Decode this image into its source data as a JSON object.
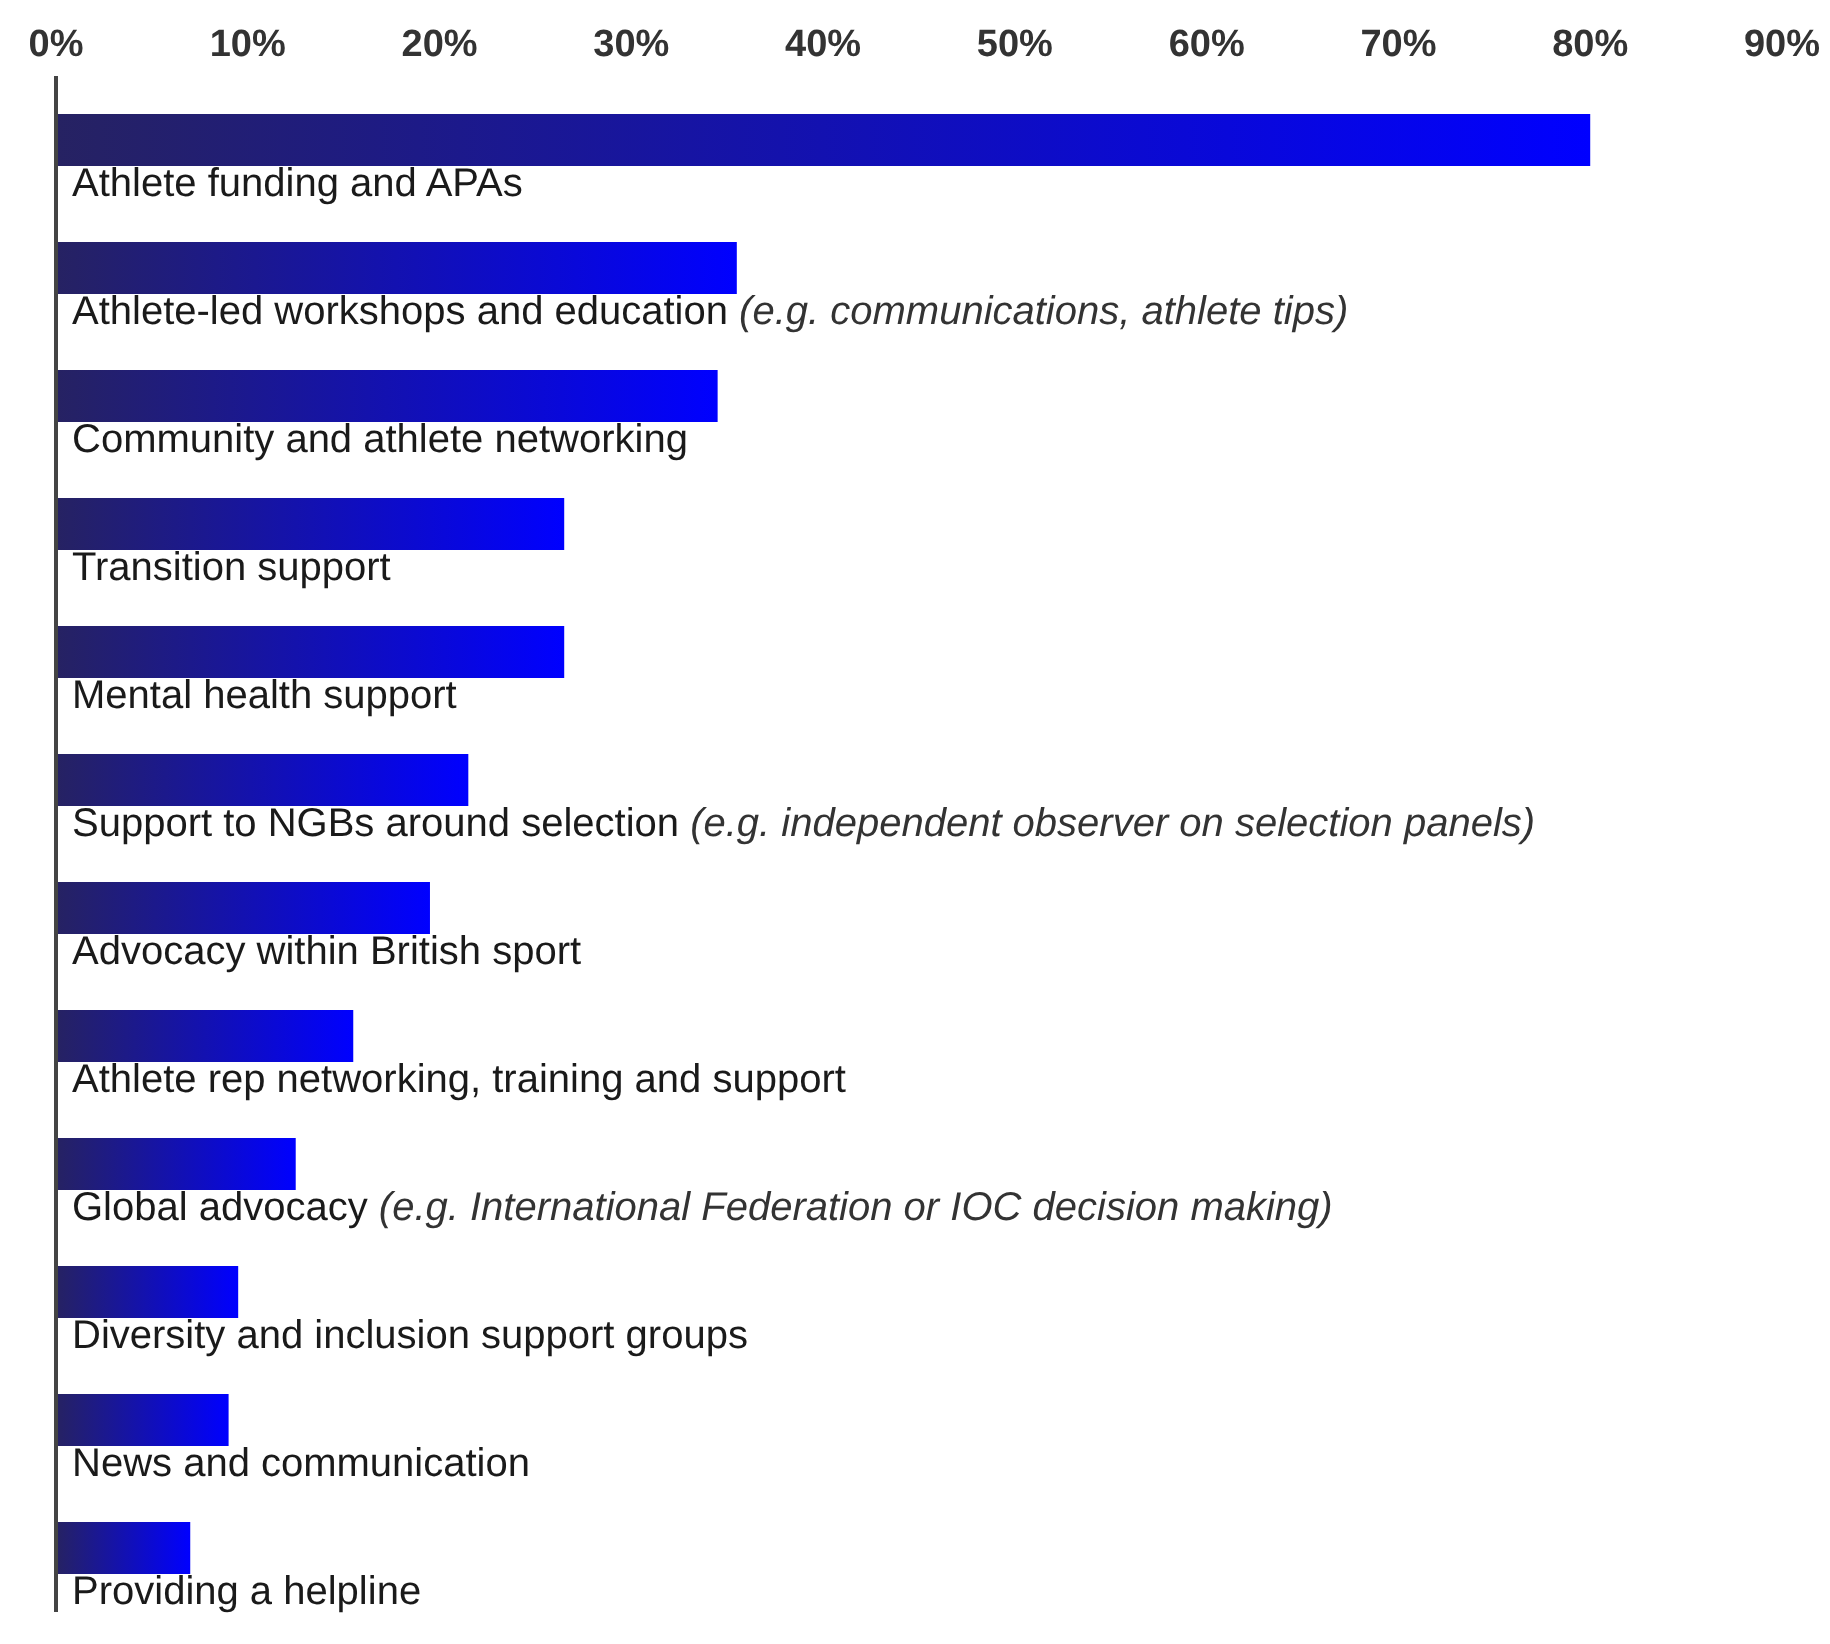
{
  "chart_data": {
    "type": "bar",
    "orientation": "horizontal",
    "categories": [
      "Athlete funding and APAs",
      "Athlete-led workshops and education (e.g. communications, athlete tips)",
      "Community and athlete networking",
      "Transition support",
      "Mental health support",
      "Support to NGBs around selection (e.g. independent observer on selection panels)",
      "Advocacy within British sport",
      "Athlete rep networking, training and support",
      "Global advocacy (e.g. International Federation or IOC decision making)",
      "Diversity and inclusion support groups",
      "News and communication",
      "Providing a helpline"
    ],
    "series": [
      {
        "color": "#0000ff",
        "values": [
          80,
          35.5,
          34.5,
          26.5,
          26.5,
          21.5,
          19.5,
          15.5,
          12.5,
          9.5,
          9,
          7
        ]
      }
    ],
    "xlim": [
      0,
      90
    ],
    "xticks": [
      {
        "value": 0,
        "label": "0%"
      },
      {
        "value": 10,
        "label": "10%"
      },
      {
        "value": 20,
        "label": "20%"
      },
      {
        "value": 30,
        "label": "30%"
      },
      {
        "value": 40,
        "label": "40%"
      },
      {
        "value": 50,
        "label": "50%"
      },
      {
        "value": 60,
        "label": "60%"
      },
      {
        "value": 70,
        "label": "70%"
      },
      {
        "value": 80,
        "label": "80%"
      },
      {
        "value": 90,
        "label": "90%"
      }
    ],
    "grid": false,
    "legend": false
  }
}
